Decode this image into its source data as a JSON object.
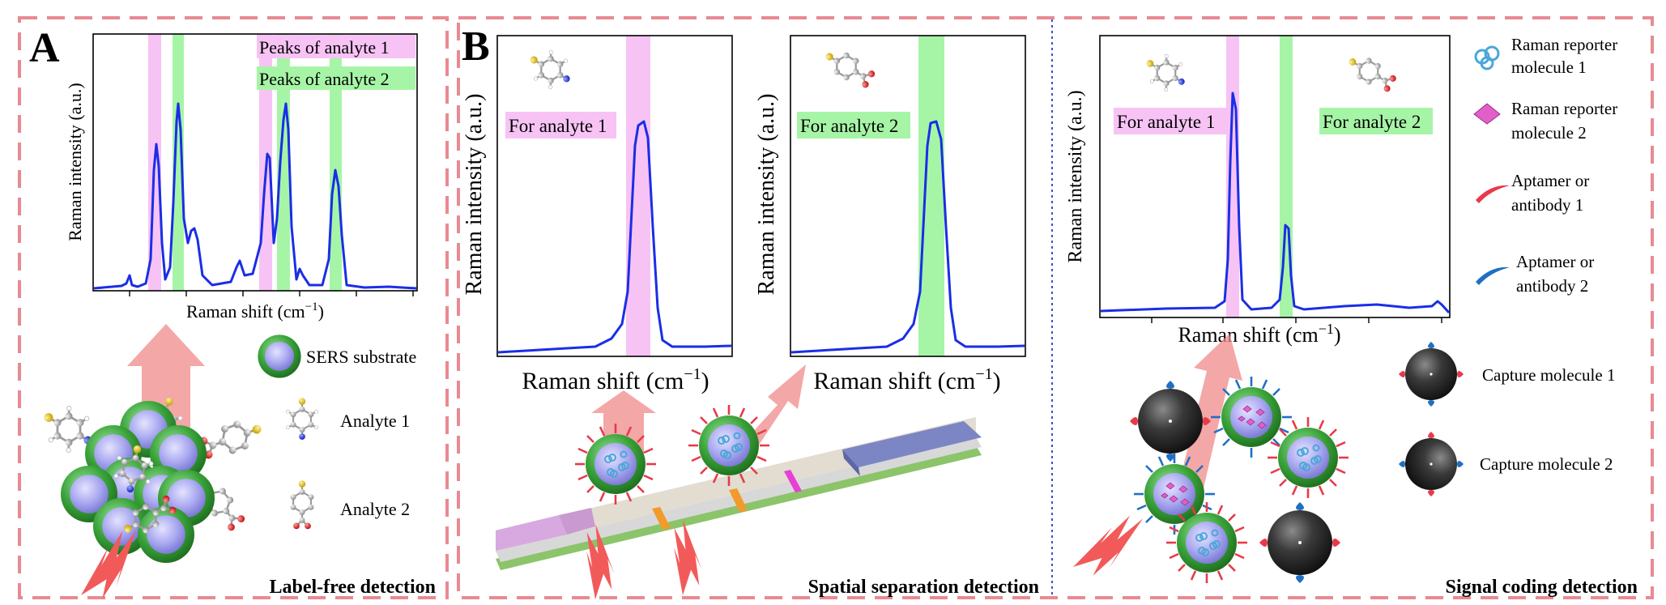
{
  "panels": {
    "A": {
      "letter": "A",
      "footer": "Label-free detection",
      "legend": {
        "substrate": "SERS substrate",
        "analyte1": "Analyte 1",
        "analyte2": "Analyte 2"
      },
      "chart": {
        "ylabel": "Raman intensity (a.u.)",
        "xlabel_main": "Raman shift (cm",
        "xlabel_sup": "−1",
        "xlabel_close": ")",
        "annotation1": "Peaks of analyte 1",
        "annotation2": "Peaks of analyte 2"
      }
    },
    "B": {
      "letter": "B",
      "footer": "Spatial separation detection",
      "chart1": {
        "ylabel": "Raman intensity (a.u.)",
        "xlabel_main": "Raman shift (cm",
        "xlabel_sup": "−1",
        "xlabel_close": ")",
        "label": "For analyte 1"
      },
      "chart2": {
        "ylabel": "Raman intensity (a.u.)",
        "xlabel_main": "Raman shift (cm",
        "xlabel_sup": "−1",
        "xlabel_close": ")",
        "label": "For analyte 2"
      }
    },
    "C": {
      "footer": "Signal coding detection",
      "chart": {
        "ylabel": "Raman intensity (a.u.)",
        "xlabel_main": "Raman shift (cm",
        "xlabel_sup": "−1",
        "xlabel_close": ")",
        "label1": "For analyte 1",
        "label2": "For analyte 2"
      },
      "legend": {
        "reporter1_l1": "Raman reporter",
        "reporter1_l2": "molecule 1",
        "reporter2_l1": "Raman reporter",
        "reporter2_l2": "molecule 2",
        "aptamer1_l1": "Aptamer or",
        "aptamer1_l2": "antibody 1",
        "aptamer2_l1": "Aptamer or",
        "aptamer2_l2": "antibody 2",
        "capture1": "Capture molecule 1",
        "capture2": "Capture molecule 2"
      }
    }
  },
  "colors": {
    "analyte1_band": "#f7c3f5",
    "analyte2_band": "#a6f5a6",
    "spectrum": "#1a2ee6",
    "panel_border": "#e88a93",
    "divider": "#3355cc",
    "arrow": "#f08a8a",
    "laser": "#f25a5a",
    "sphere_shell": "#3aa33a",
    "sphere_core": "#a9a8f0",
    "capture_sphere": "#3a3a3a",
    "aptamer1": "#e8394a",
    "aptamer2": "#1f6fc4",
    "reporter2": "#e060c8",
    "strip_conjugate": "#f29a2c",
    "strip_test": "#e83fd6",
    "strip_absorbent": "#7d86c4",
    "strip_sample": "#d8a9e0"
  },
  "icons": [
    "sers-substrate-icon",
    "analyte-molecule-icon",
    "raman-reporter-1-icon",
    "raman-reporter-2-icon",
    "aptamer-1-icon",
    "aptamer-2-icon",
    "capture-molecule-icon",
    "laser-icon",
    "lateral-flow-strip-icon"
  ]
}
